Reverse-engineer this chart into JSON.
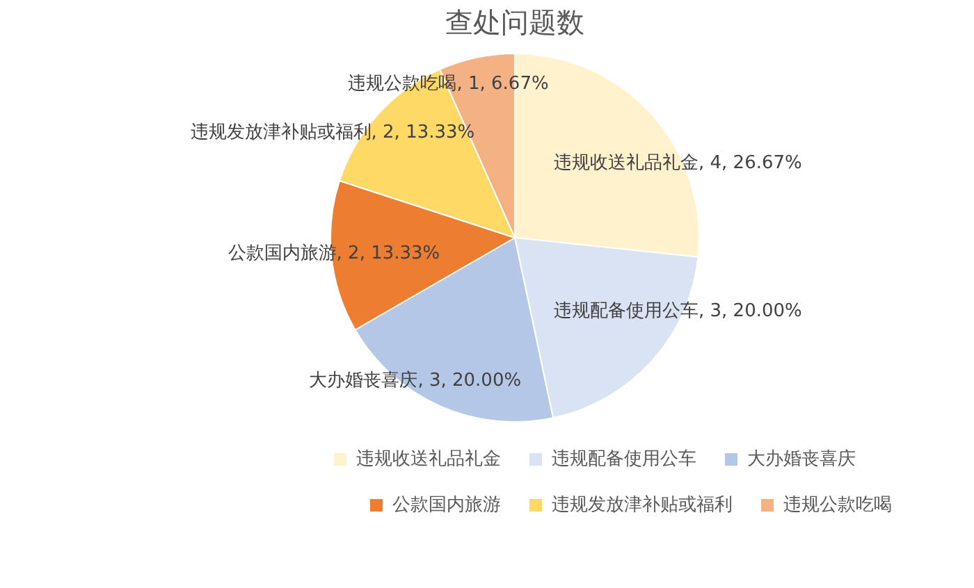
{
  "chart_data": {
    "type": "pie",
    "title": "查处问题数",
    "categories": [
      "违规收送礼品礼金",
      "违规配备使用公车",
      "大办婚丧喜庆",
      "公款国内旅游",
      "违规发放津补贴或福利",
      "违规公款吃喝"
    ],
    "values": [
      4,
      3,
      3,
      2,
      2,
      1
    ],
    "value_labels": [
      "违规收送礼品礼金, 4, 26.67%",
      "违规配备使用公车, 3, 20.00%",
      "大办婚丧喜庆, 3, 20.00%",
      "公款国内旅游, 2, 13.33%",
      "违规发放津补贴或福利, 2, 13.33%",
      "违规公款吃喝, 1, 6.67%"
    ],
    "colors": [
      "#fff2cc",
      "#dae3f3",
      "#b4c7e7",
      "#ed7d31",
      "#ffd966",
      "#f4b183"
    ],
    "legend": "bottom"
  }
}
